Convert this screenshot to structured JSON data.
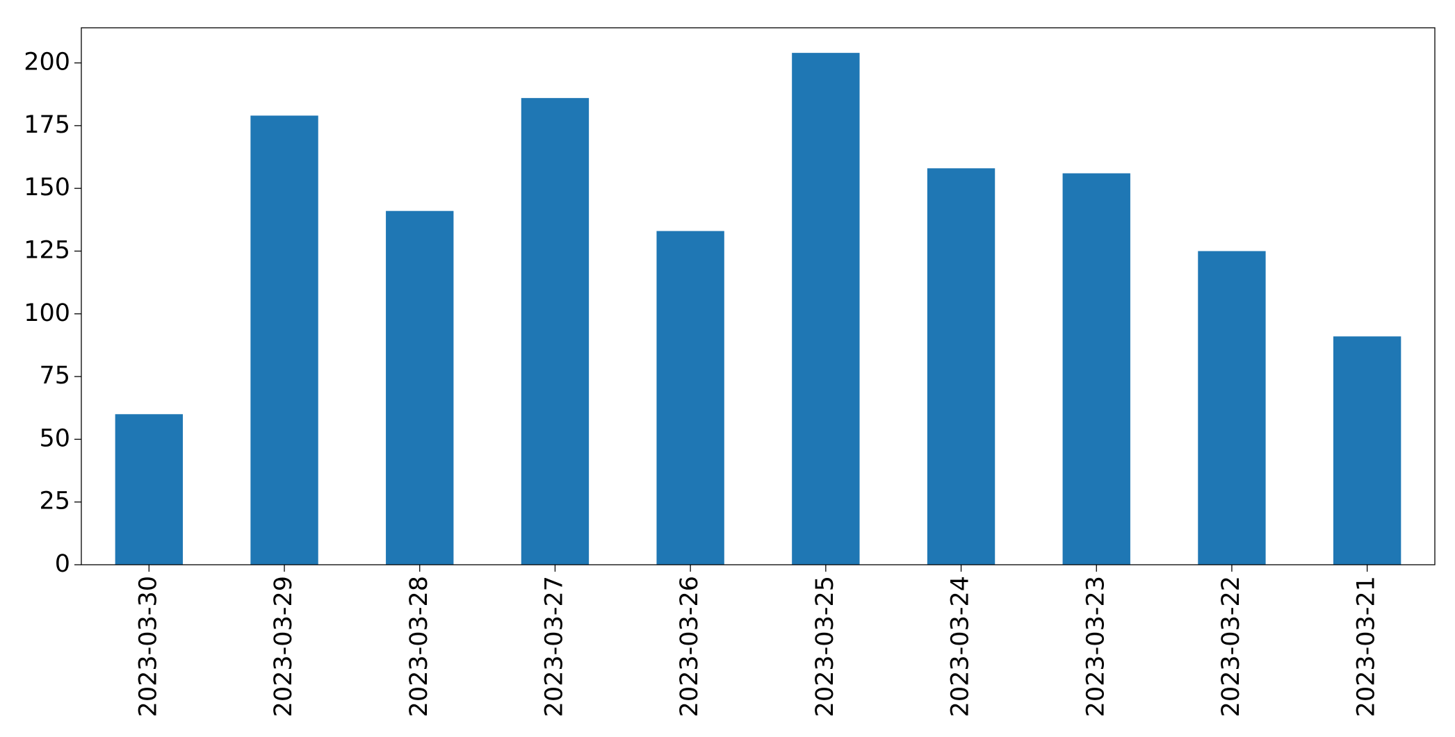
{
  "chart_data": {
    "type": "bar",
    "categories": [
      "2023-03-30",
      "2023-03-29",
      "2023-03-28",
      "2023-03-27",
      "2023-03-26",
      "2023-03-25",
      "2023-03-24",
      "2023-03-23",
      "2023-03-22",
      "2023-03-21"
    ],
    "values": [
      60,
      179,
      141,
      186,
      133,
      204,
      158,
      156,
      125,
      91
    ],
    "color": "#1f77b4",
    "ylim": [
      0,
      214
    ],
    "yticks": [
      0,
      25,
      50,
      75,
      100,
      125,
      150,
      175,
      200
    ],
    "grid": false
  }
}
